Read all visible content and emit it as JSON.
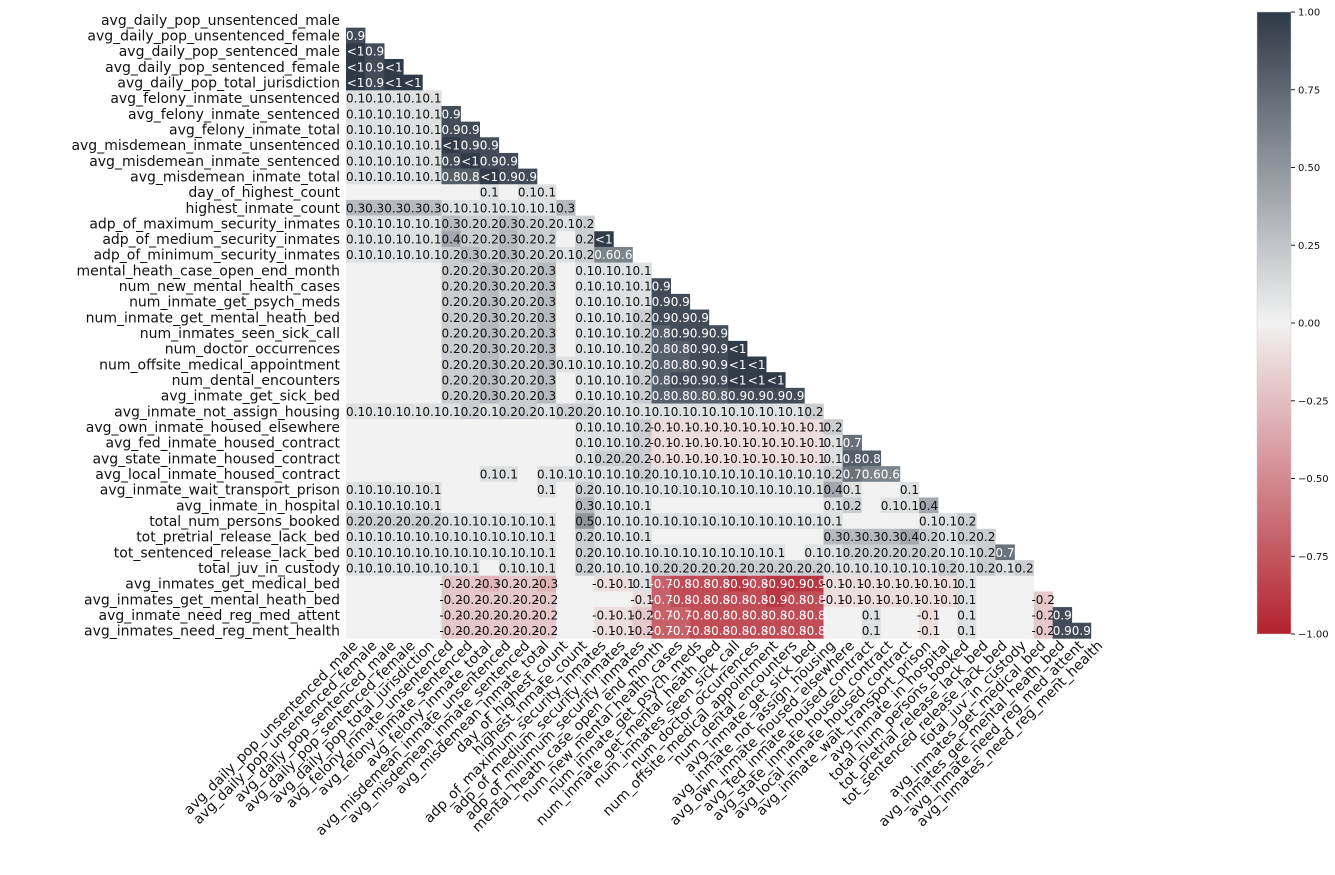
{
  "chart_data": {
    "type": "heatmap",
    "title": "",
    "xlabel": "",
    "ylabel": "",
    "mask": "upper-triangle",
    "vmin": -1,
    "vmax": 1,
    "colorbar": {
      "ticks": [
        1.0,
        0.75,
        0.5,
        0.25,
        0.0,
        -0.25,
        -0.5,
        -0.75,
        -1.0
      ],
      "tick_labels": [
        "1.00",
        "0.75",
        "0.50",
        "0.25",
        "0.00",
        "−0.25",
        "−0.50",
        "−0.75",
        "−1.00"
      ],
      "colors": {
        "pos": "#2e3a47",
        "mid": "#f2f2f2",
        "neg": "#b3222e"
      }
    },
    "labels": [
      "avg_daily_pop_unsentenced_male",
      "avg_daily_pop_unsentenced_female",
      "avg_daily_pop_sentenced_male",
      "avg_daily_pop_sentenced_female",
      "avg_daily_pop_total_jurisdiction",
      "avg_felony_inmate_unsentenced",
      "avg_felony_inmate_sentenced",
      "avg_felony_inmate_total",
      "avg_misdemean_inmate_unsentenced",
      "avg_misdemean_inmate_sentenced",
      "avg_misdemean_inmate_total",
      "day_of_highest_count",
      "highest_inmate_count",
      "adp_of_maximum_security_inmates",
      "adp_of_medium_security_inmates",
      "adp_of_minimum_security_inmates",
      "mental_heath_case_open_end_month",
      "num_new_mental_health_cases",
      "num_inmate_get_psych_meds",
      "num_inmate_get_mental_heath_bed",
      "num_inmates_seen_sick_call",
      "num_doctor_occurrences",
      "num_offsite_medical_appointment",
      "num_dental_encounters",
      "avg_inmate_get_sick_bed",
      "avg_inmate_not_assign_housing",
      "avg_own_inmate_housed_elsewhere",
      "avg_fed_inmate_housed_contract",
      "avg_state_inmate_housed_contract",
      "avg_local_inmate_housed_contract",
      "avg_inmate_wait_transport_prison",
      "avg_inmate_in_hospital",
      "total_num_persons_booked",
      "tot_pretrial_release_lack_bed",
      "tot_sentenced_release_lack_bed",
      "total_juv_in_custody",
      "avg_inmates_get_medical_bed",
      "avg_inmates_get_mental_heath_bed",
      "avg_inmate_need_reg_med_attent",
      "avg_inmates_need_reg_ment_health"
    ],
    "rows": [
      [],
      [
        0.9
      ],
      [
        1,
        0.9
      ],
      [
        1,
        0.9,
        1
      ],
      [
        1,
        0.9,
        1,
        1
      ],
      [
        0.1,
        0.1,
        0.1,
        0.1,
        0.1
      ],
      [
        0.1,
        0.1,
        0.1,
        0.1,
        0.1,
        0.9
      ],
      [
        0.1,
        0.1,
        0.1,
        0.1,
        0.1,
        0.9,
        0.9
      ],
      [
        0.1,
        0.1,
        0.1,
        0.1,
        0.1,
        0.99,
        0.9,
        0.9
      ],
      [
        0.1,
        0.1,
        0.1,
        0.1,
        0.1,
        0.9,
        0.99,
        0.9,
        0.9
      ],
      [
        0.1,
        0.1,
        0.1,
        0.1,
        0.1,
        0.8,
        0.8,
        0.99,
        0.9,
        0.9
      ],
      [
        null,
        null,
        null,
        null,
        null,
        null,
        null,
        0.1,
        null,
        0.1,
        0.1
      ],
      [
        0.3,
        0.3,
        0.3,
        0.3,
        0.3,
        0.1,
        0.1,
        0.1,
        0.1,
        0.1,
        0.1,
        0.3
      ],
      [
        0.1,
        0.1,
        0.1,
        0.1,
        0.1,
        0.3,
        0.2,
        0.2,
        0.3,
        0.2,
        0.2,
        0.1,
        0.2
      ],
      [
        0.1,
        0.1,
        0.1,
        0.1,
        0.1,
        0.4,
        0.2,
        0.2,
        0.3,
        0.2,
        0.2,
        null,
        0.2,
        0.99
      ],
      [
        0.1,
        0.1,
        0.1,
        0.1,
        0.1,
        0.2,
        0.3,
        0.2,
        0.3,
        0.2,
        0.2,
        0.1,
        0.2,
        0.6,
        0.6
      ],
      [
        null,
        null,
        null,
        null,
        null,
        0.2,
        0.2,
        0.3,
        0.2,
        0.2,
        0.3,
        null,
        0.1,
        0.1,
        0.1,
        0.1
      ],
      [
        null,
        null,
        null,
        null,
        null,
        0.2,
        0.2,
        0.3,
        0.2,
        0.2,
        0.3,
        null,
        0.1,
        0.1,
        0.1,
        0.1,
        0.9
      ],
      [
        null,
        null,
        null,
        null,
        null,
        0.2,
        0.2,
        0.3,
        0.2,
        0.2,
        0.3,
        null,
        0.1,
        0.1,
        0.1,
        0.1,
        0.9,
        0.9
      ],
      [
        null,
        null,
        null,
        null,
        null,
        0.2,
        0.2,
        0.3,
        0.2,
        0.2,
        0.3,
        null,
        0.1,
        0.1,
        0.1,
        0.2,
        0.9,
        0.9,
        0.9
      ],
      [
        null,
        null,
        null,
        null,
        null,
        0.2,
        0.2,
        0.3,
        0.2,
        0.2,
        0.3,
        null,
        0.1,
        0.1,
        0.1,
        0.2,
        0.8,
        0.9,
        0.9,
        0.9
      ],
      [
        null,
        null,
        null,
        null,
        null,
        0.2,
        0.2,
        0.3,
        0.2,
        0.2,
        0.3,
        null,
        0.1,
        0.1,
        0.1,
        0.2,
        0.8,
        0.8,
        0.9,
        0.9,
        0.99
      ],
      [
        null,
        null,
        null,
        null,
        null,
        0.2,
        0.2,
        0.3,
        0.2,
        0.2,
        0.3,
        0.1,
        0.1,
        0.1,
        0.1,
        0.2,
        0.8,
        0.8,
        0.9,
        0.9,
        0.99,
        0.99
      ],
      [
        null,
        null,
        null,
        null,
        null,
        0.2,
        0.2,
        0.3,
        0.2,
        0.2,
        0.3,
        null,
        0.1,
        0.1,
        0.1,
        0.2,
        0.8,
        0.9,
        0.9,
        0.9,
        0.99,
        0.99,
        0.99
      ],
      [
        null,
        null,
        null,
        null,
        null,
        0.2,
        0.2,
        0.3,
        0.2,
        0.2,
        0.3,
        null,
        0.1,
        0.1,
        0.1,
        0.2,
        0.8,
        0.8,
        0.8,
        0.8,
        0.9,
        0.9,
        0.9,
        0.9
      ],
      [
        0.1,
        0.1,
        0.1,
        0.1,
        0.1,
        0.1,
        0.2,
        0.1,
        0.2,
        0.2,
        0.1,
        0.2,
        0.2,
        0.1,
        0.1,
        0.1,
        0.1,
        0.1,
        0.1,
        0.1,
        0.1,
        0.1,
        0.1,
        0.1,
        0.2
      ],
      [
        null,
        null,
        null,
        null,
        null,
        null,
        null,
        null,
        null,
        null,
        null,
        null,
        0.1,
        0.1,
        0.1,
        0.2,
        -0.1,
        -0.1,
        -0.1,
        -0.1,
        -0.1,
        -0.1,
        -0.1,
        -0.1,
        -0.1,
        0.2
      ],
      [
        null,
        null,
        null,
        null,
        null,
        null,
        null,
        null,
        null,
        null,
        null,
        null,
        0.1,
        0.1,
        0.1,
        0.2,
        -0.1,
        -0.1,
        -0.1,
        -0.1,
        -0.1,
        -0.1,
        -0.1,
        -0.1,
        -0.1,
        0.1,
        0.7
      ],
      [
        null,
        null,
        null,
        null,
        null,
        null,
        null,
        null,
        null,
        null,
        null,
        null,
        0.1,
        0.2,
        0.2,
        0.2,
        -0.1,
        -0.1,
        -0.1,
        -0.1,
        -0.1,
        -0.1,
        -0.1,
        -0.1,
        -0.1,
        0.1,
        0.8,
        0.8
      ],
      [
        null,
        null,
        null,
        null,
        null,
        null,
        null,
        0.1,
        0.1,
        null,
        0.1,
        0.1,
        0.1,
        0.1,
        0.1,
        0.2,
        0.1,
        0.1,
        0.1,
        0.1,
        0.1,
        0.1,
        0.1,
        0.1,
        0.1,
        0.2,
        0.7,
        0.6,
        0.6
      ],
      [
        0.1,
        0.1,
        0.1,
        0.1,
        0.1,
        null,
        null,
        null,
        null,
        null,
        0.1,
        null,
        0.2,
        0.1,
        0.1,
        0.1,
        0.1,
        0.1,
        0.1,
        0.1,
        0.1,
        0.1,
        0.1,
        0.1,
        0.1,
        0.4,
        0.1,
        null,
        null,
        0.1
      ],
      [
        0.1,
        0.1,
        0.1,
        0.1,
        0.1,
        null,
        null,
        null,
        null,
        null,
        null,
        null,
        0.3,
        0.1,
        0.1,
        0.1,
        null,
        null,
        null,
        null,
        null,
        null,
        null,
        null,
        null,
        0.1,
        0.2,
        null,
        0.1,
        0.1,
        0.4
      ],
      [
        0.2,
        0.2,
        0.2,
        0.2,
        0.2,
        0.1,
        0.1,
        0.1,
        0.1,
        0.1,
        0.1,
        null,
        0.5,
        0.1,
        0.1,
        0.1,
        0.1,
        0.1,
        0.1,
        0.1,
        0.1,
        0.1,
        0.1,
        0.1,
        0.1,
        0.1,
        null,
        null,
        null,
        null,
        0.1,
        0.1,
        0.2
      ],
      [
        0.1,
        0.1,
        0.1,
        0.1,
        0.1,
        0.1,
        0.1,
        0.1,
        0.1,
        0.1,
        0.1,
        null,
        0.2,
        0.1,
        0.1,
        0.1,
        null,
        null,
        null,
        null,
        null,
        null,
        null,
        null,
        null,
        0.3,
        0.3,
        0.3,
        0.3,
        0.4,
        0.2,
        0.1,
        0.2,
        0.2
      ],
      [
        0.1,
        0.1,
        0.1,
        0.1,
        0.1,
        0.1,
        0.1,
        0.1,
        0.1,
        0.1,
        0.1,
        null,
        0.2,
        0.1,
        0.1,
        0.1,
        0.1,
        0.1,
        0.1,
        0.1,
        0.1,
        0.1,
        0.1,
        null,
        0.1,
        0.1,
        0.2,
        0.2,
        0.2,
        0.2,
        0.2,
        0.1,
        0.1,
        0.2,
        0.7
      ],
      [
        0.1,
        0.1,
        0.1,
        0.1,
        0.1,
        0.1,
        0.1,
        null,
        0.1,
        0.1,
        0.1,
        null,
        0.2,
        0.1,
        0.1,
        0.1,
        0.2,
        0.2,
        0.2,
        0.2,
        0.2,
        0.2,
        0.2,
        0.2,
        0.2,
        0.1,
        0.1,
        0.1,
        0.1,
        0.1,
        0.1,
        0.2,
        0.1,
        0.2,
        0.1,
        0.2
      ],
      [
        null,
        null,
        null,
        null,
        null,
        -0.2,
        -0.2,
        -0.3,
        -0.2,
        -0.2,
        -0.3,
        null,
        null,
        -0.1,
        -0.1,
        0.1,
        -0.7,
        -0.8,
        -0.8,
        -0.8,
        -0.9,
        -0.8,
        -0.9,
        -0.9,
        -0.9,
        -0.1,
        -0.1,
        -0.1,
        -0.1,
        -0.1,
        -0.1,
        -0.1,
        0.1,
        null,
        null,
        null
      ],
      [
        null,
        null,
        null,
        null,
        null,
        -0.2,
        -0.2,
        -0.2,
        -0.2,
        -0.2,
        -0.2,
        null,
        null,
        null,
        null,
        -0.1,
        -0.7,
        -0.8,
        -0.8,
        -0.8,
        -0.8,
        -0.8,
        -0.9,
        -0.8,
        -0.8,
        -0.1,
        -0.1,
        -0.1,
        -0.1,
        -0.1,
        -0.1,
        -0.1,
        0.1,
        null,
        null,
        null,
        -0.2
      ],
      [
        null,
        null,
        null,
        null,
        null,
        -0.2,
        -0.2,
        -0.2,
        -0.2,
        -0.2,
        -0.2,
        null,
        null,
        -0.1,
        -0.1,
        -0.2,
        -0.7,
        -0.7,
        -0.8,
        -0.8,
        -0.8,
        -0.8,
        -0.8,
        -0.8,
        -0.8,
        null,
        null,
        0.1,
        null,
        null,
        -0.1,
        null,
        0.1,
        null,
        null,
        null,
        -0.2,
        0.9
      ],
      [
        null,
        null,
        null,
        null,
        null,
        -0.2,
        -0.2,
        -0.2,
        -0.2,
        -0.2,
        -0.2,
        null,
        null,
        -0.1,
        -0.1,
        -0.2,
        -0.7,
        -0.7,
        -0.8,
        -0.8,
        -0.8,
        -0.8,
        -0.8,
        -0.8,
        -0.8,
        null,
        null,
        0.1,
        null,
        null,
        -0.1,
        null,
        0.1,
        null,
        null,
        null,
        -0.2,
        0.9,
        0.9
      ]
    ]
  }
}
